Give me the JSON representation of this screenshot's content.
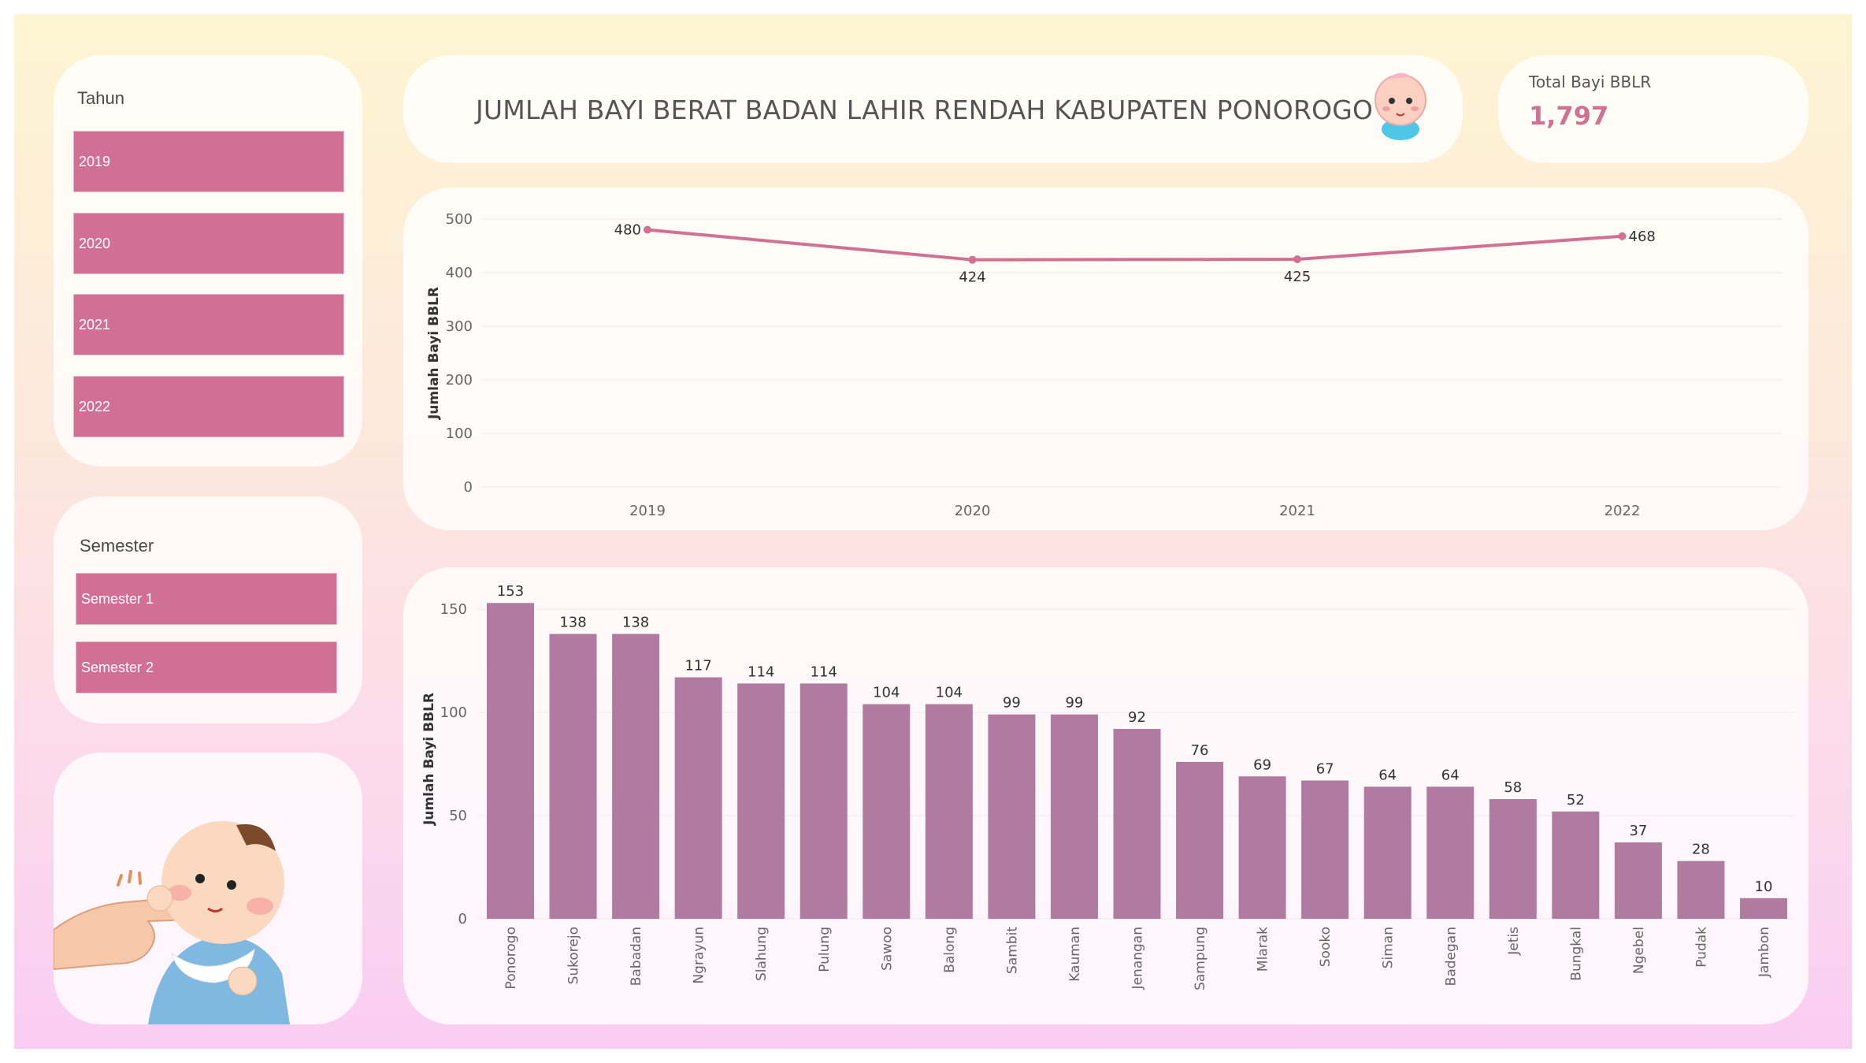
{
  "filters": {
    "year": {
      "title": "Tahun",
      "options": [
        "2019",
        "2020",
        "2021",
        "2022"
      ]
    },
    "semester": {
      "title": "Semester",
      "options": [
        "Semester 1",
        "Semester 2"
      ]
    }
  },
  "header": {
    "title": "JUMLAH BAYI BERAT BADAN LAHIR RENDAH KABUPATEN PONOROGO"
  },
  "kpi": {
    "label": "Total Bayi BBLR",
    "value": "1,797"
  },
  "colors": {
    "accent": "#d27093",
    "bar": "#b07aa1",
    "line": "#d27093"
  },
  "chart_data": [
    {
      "type": "line",
      "x": [
        "2019",
        "2020",
        "2021",
        "2022"
      ],
      "values": [
        480,
        424,
        425,
        468
      ],
      "ylabel": "Jumlah Bayi BBLR",
      "xlabel": "",
      "ylim": [
        0,
        500
      ],
      "yticks": [
        0,
        100,
        200,
        300,
        400,
        500
      ],
      "grid": true
    },
    {
      "type": "bar",
      "categories": [
        "Ponorogo",
        "Sukorejo",
        "Babadan",
        "Ngrayun",
        "Slahung",
        "Pulung",
        "Sawoo",
        "Balong",
        "Sambit",
        "Kauman",
        "Jenangan",
        "Sampung",
        "Mlarak",
        "Sooko",
        "Siman",
        "Badegan",
        "Jetis",
        "Bungkal",
        "Ngebel",
        "Pudak",
        "Jambon"
      ],
      "values": [
        153,
        138,
        138,
        117,
        114,
        114,
        104,
        104,
        99,
        99,
        92,
        76,
        69,
        67,
        64,
        64,
        58,
        52,
        37,
        28,
        10
      ],
      "ylabel": "Jumlah Bayi BBLR",
      "xlabel": "",
      "ylim": [
        0,
        155
      ],
      "yticks": [
        0,
        50,
        100,
        150
      ],
      "grid": true
    }
  ]
}
